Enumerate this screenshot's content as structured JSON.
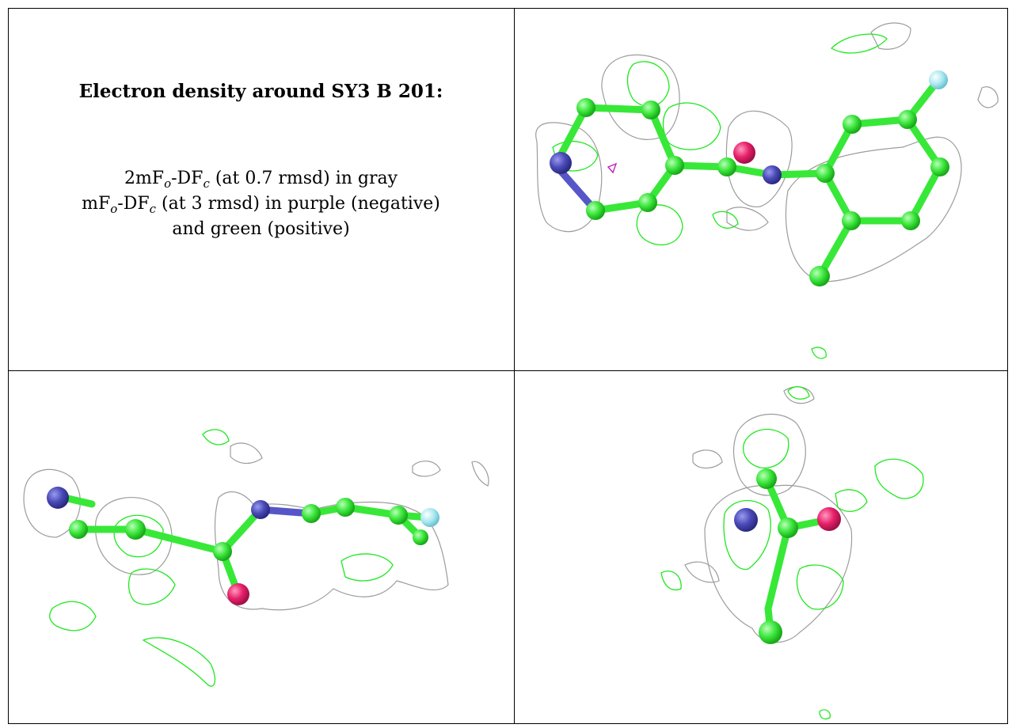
{
  "caption": {
    "title": "Electron density around SY3 B 201:",
    "line1": {
      "pre": "2mF",
      "sub1": "o",
      "mid": "-DF",
      "sub2": "c",
      "post": " (at 0.7 rmsd) in gray"
    },
    "line2": {
      "pre": "mF",
      "sub1": "o",
      "mid": "-DF",
      "sub2": "c",
      "post": " (at 3 rmsd) in purple (negative)"
    },
    "line3": "and green (positive)"
  },
  "colors": {
    "carbon": "#3ce63c",
    "nitrogen": "#4a4ab8",
    "oxygen": "#e8206a",
    "fluorine": "#a6e8f0",
    "mesh_gray": "#9c9c9c",
    "mesh_green": "#1ee81e",
    "mesh_purple": "#c020c0"
  },
  "panels": [
    {
      "name": "view-top-right"
    },
    {
      "name": "view-bottom-left"
    },
    {
      "name": "view-bottom-right"
    }
  ]
}
